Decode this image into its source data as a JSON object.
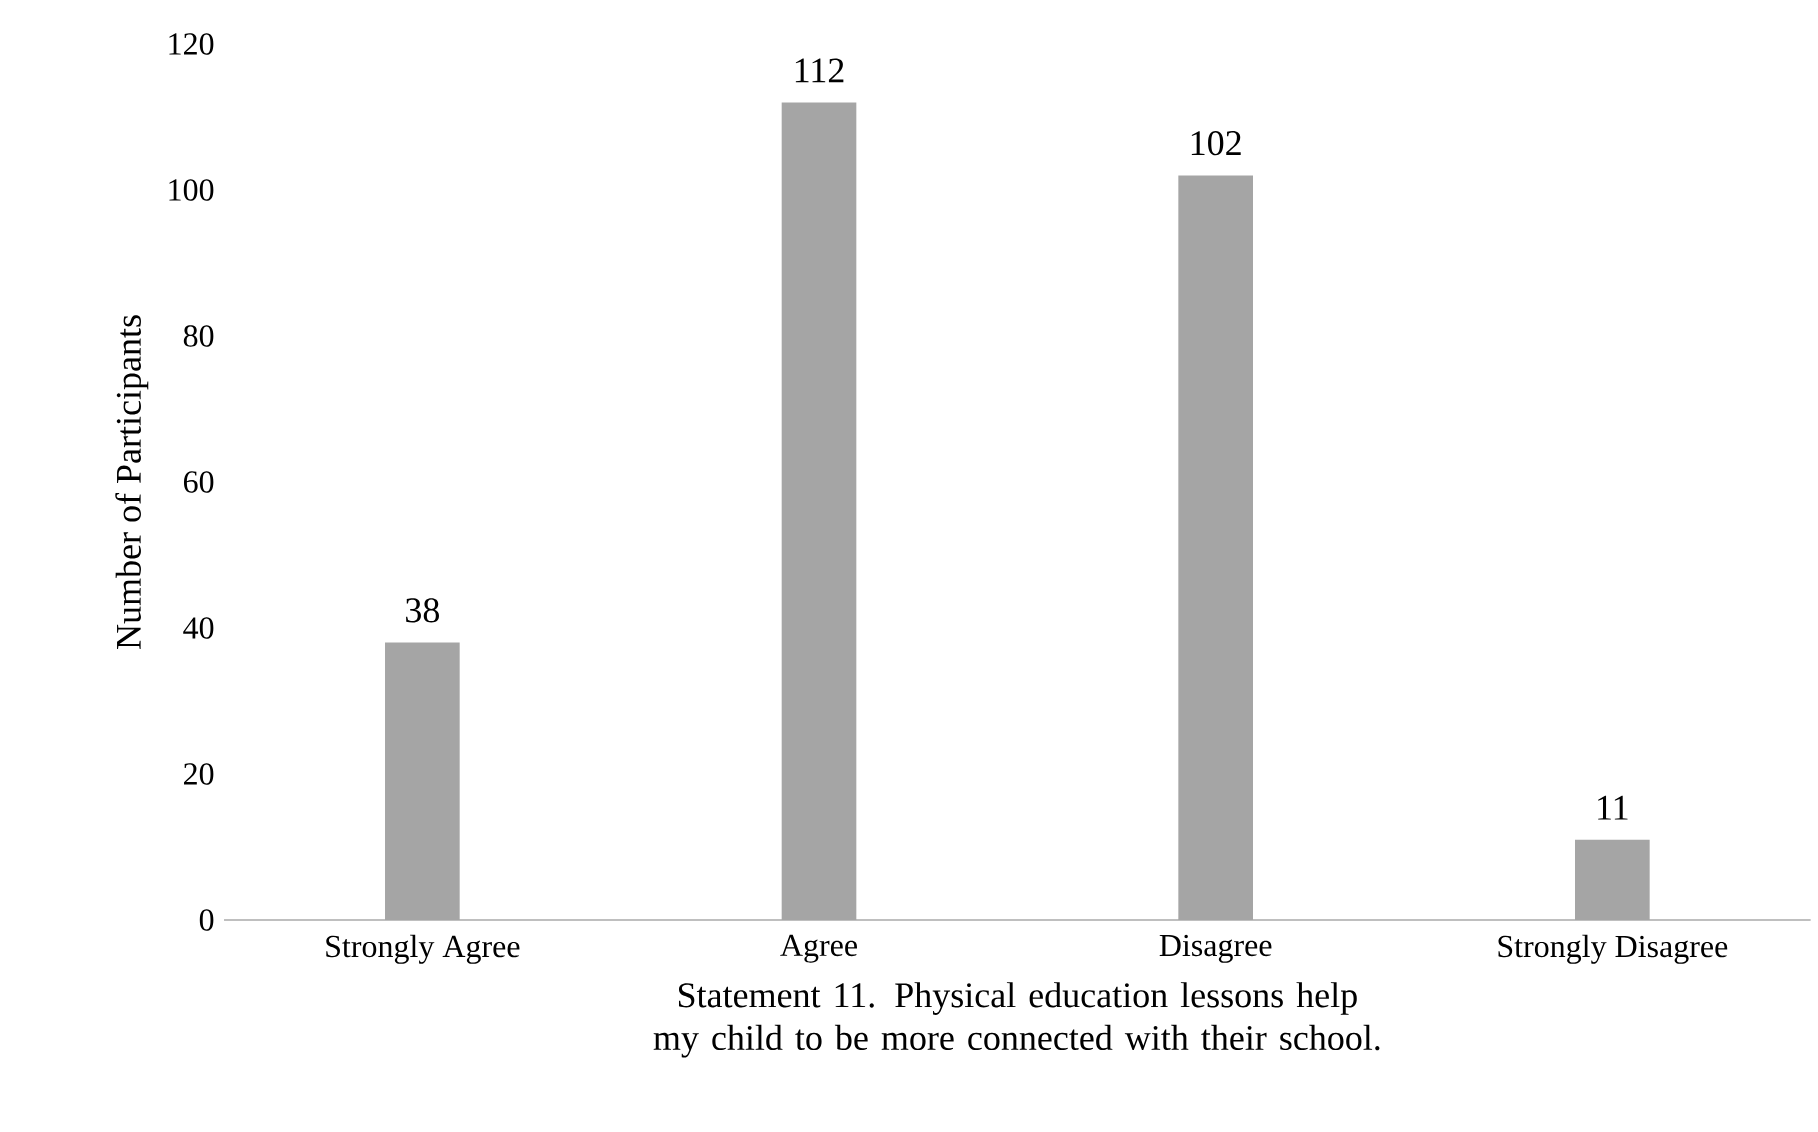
{
  "chart_data": {
    "type": "bar",
    "categories": [
      "Strongly Agree",
      "Agree",
      "Disagree",
      "Strongly Disagree"
    ],
    "values": [
      38,
      112,
      102,
      11
    ],
    "color": "#a5a5a5",
    "xlabel": "Statement 11. Physical education lessons help my child to be more connected with their school.",
    "ylabel": "Number of Participants",
    "ylim": [
      0,
      120
    ],
    "yticks": [
      0,
      20,
      40,
      60,
      80,
      100,
      120
    ],
    "data_labels": true
  }
}
